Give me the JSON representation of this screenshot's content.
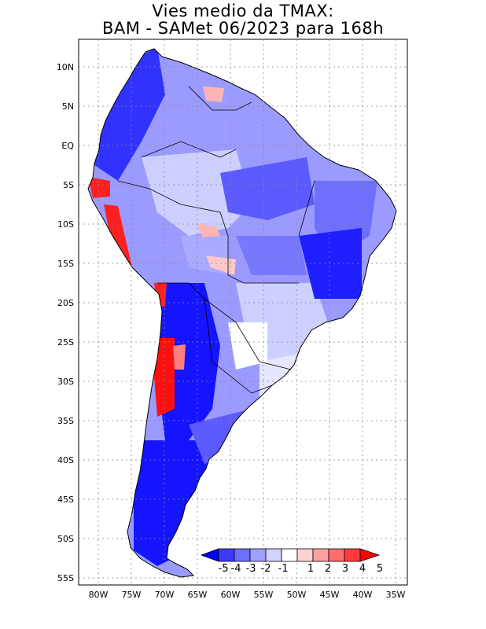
{
  "title_line1": "Vies medio da TMAX:",
  "title_line2": "BAM - SAMet 06/2023  para 168h",
  "lat_labels": [
    "10N",
    "5N",
    "EQ",
    "5S",
    "10S",
    "15S",
    "20S",
    "25S",
    "30S",
    "35S",
    "40S",
    "45S",
    "50S",
    "55S"
  ],
  "lon_labels": [
    "80W",
    "75W",
    "70W",
    "65W",
    "60W",
    "55W",
    "50W",
    "45W",
    "40W",
    "35W"
  ],
  "colorbar": {
    "labels": [
      "-5",
      "-4",
      "-3",
      "-2",
      "-1",
      "1",
      "2",
      "3",
      "4",
      "5"
    ],
    "colors": [
      "#0000ff",
      "#3c3cff",
      "#6e6eff",
      "#a0a0ff",
      "#d2d2ff",
      "#ffffff",
      "#ffd2d2",
      "#ffa0a0",
      "#ff6e6e",
      "#ff3c3c",
      "#ff0000"
    ]
  },
  "palette": {
    "deep_blue": "#1414ff",
    "mid_blue": "#5a5aff",
    "light_blue": "#9b9bff",
    "pale_blue": "#cdd0ff",
    "red": "#ff2020",
    "pink": "#ffb4b4",
    "land_outline": "#000000"
  }
}
